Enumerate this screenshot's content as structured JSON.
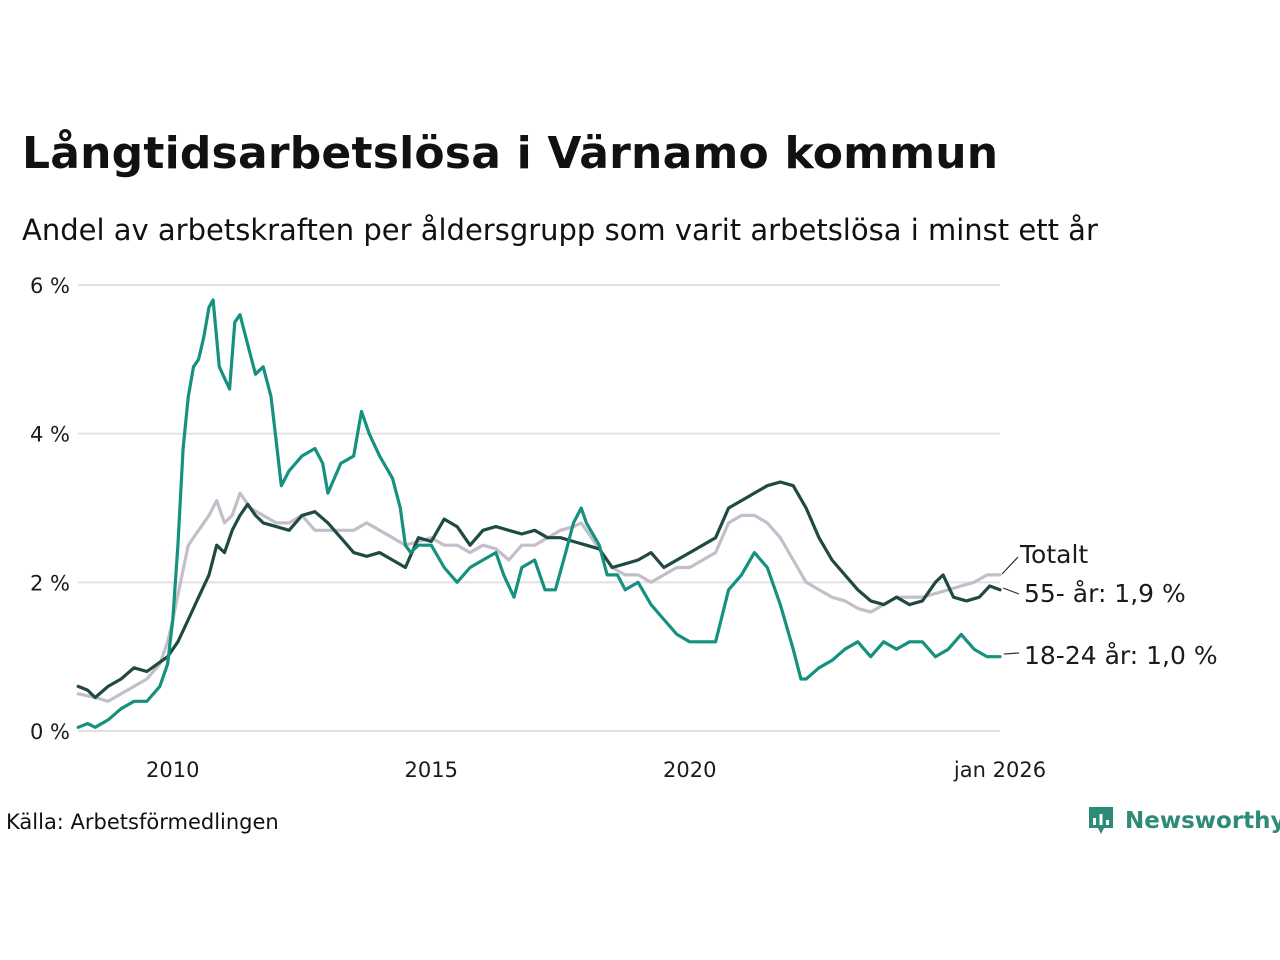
{
  "title": "Långtidsarbetslösa i Värnamo kommun",
  "subtitle": "Andel av arbetskraften per åldersgrupp som varit arbetslösa i minst ett år",
  "source": "Källa: Arbetsförmedlingen",
  "logo_text": "Newsworthy",
  "colors": {
    "total": "#c3bec9",
    "age55": "#1f4a40",
    "age1824": "#16917f",
    "grid": "#e2e0e4",
    "brand": "#2e8b78"
  },
  "chart_data": {
    "type": "line",
    "title": "Långtidsarbetslösa i Värnamo kommun",
    "subtitle": "Andel av arbetskraften per åldersgrupp som varit arbetslösa i minst ett år",
    "xlabel": "",
    "ylabel": "",
    "xlim": [
      2008.167,
      2026.0
    ],
    "ylim": [
      0,
      6
    ],
    "grid": true,
    "y_ticks": [
      {
        "value": 0,
        "label": "0 %"
      },
      {
        "value": 2,
        "label": "2 %"
      },
      {
        "value": 4,
        "label": "4 %"
      },
      {
        "value": 6,
        "label": "6 %"
      }
    ],
    "x_ticks": [
      {
        "value": 2010,
        "label": "2010"
      },
      {
        "value": 2015,
        "label": "2015"
      },
      {
        "value": 2020,
        "label": "2020"
      },
      {
        "value": 2026,
        "label": "jan 2026"
      }
    ],
    "series": [
      {
        "name": "Totalt",
        "label": "Totalt",
        "color_key": "total",
        "points": [
          [
            2008.17,
            0.5
          ],
          [
            2008.5,
            0.45
          ],
          [
            2008.75,
            0.4
          ],
          [
            2009.0,
            0.5
          ],
          [
            2009.25,
            0.6
          ],
          [
            2009.5,
            0.7
          ],
          [
            2009.75,
            0.9
          ],
          [
            2009.9,
            1.2
          ],
          [
            2010.0,
            1.5
          ],
          [
            2010.15,
            2.0
          ],
          [
            2010.3,
            2.5
          ],
          [
            2010.5,
            2.7
          ],
          [
            2010.7,
            2.9
          ],
          [
            2010.85,
            3.1
          ],
          [
            2011.0,
            2.8
          ],
          [
            2011.15,
            2.9
          ],
          [
            2011.3,
            3.2
          ],
          [
            2011.5,
            3.0
          ],
          [
            2011.75,
            2.9
          ],
          [
            2012.0,
            2.8
          ],
          [
            2012.25,
            2.8
          ],
          [
            2012.5,
            2.9
          ],
          [
            2012.75,
            2.7
          ],
          [
            2013.0,
            2.7
          ],
          [
            2013.25,
            2.7
          ],
          [
            2013.5,
            2.7
          ],
          [
            2013.75,
            2.8
          ],
          [
            2014.0,
            2.7
          ],
          [
            2014.25,
            2.6
          ],
          [
            2014.5,
            2.5
          ],
          [
            2014.75,
            2.55
          ],
          [
            2015.0,
            2.6
          ],
          [
            2015.25,
            2.5
          ],
          [
            2015.5,
            2.5
          ],
          [
            2015.75,
            2.4
          ],
          [
            2016.0,
            2.5
          ],
          [
            2016.25,
            2.45
          ],
          [
            2016.5,
            2.3
          ],
          [
            2016.75,
            2.5
          ],
          [
            2017.0,
            2.5
          ],
          [
            2017.25,
            2.6
          ],
          [
            2017.5,
            2.7
          ],
          [
            2017.75,
            2.75
          ],
          [
            2017.9,
            2.8
          ],
          [
            2018.0,
            2.7
          ],
          [
            2018.2,
            2.5
          ],
          [
            2018.5,
            2.2
          ],
          [
            2018.75,
            2.1
          ],
          [
            2019.0,
            2.1
          ],
          [
            2019.25,
            2.0
          ],
          [
            2019.5,
            2.1
          ],
          [
            2019.75,
            2.2
          ],
          [
            2020.0,
            2.2
          ],
          [
            2020.25,
            2.3
          ],
          [
            2020.5,
            2.4
          ],
          [
            2020.75,
            2.8
          ],
          [
            2021.0,
            2.9
          ],
          [
            2021.25,
            2.9
          ],
          [
            2021.5,
            2.8
          ],
          [
            2021.75,
            2.6
          ],
          [
            2022.0,
            2.3
          ],
          [
            2022.25,
            2.0
          ],
          [
            2022.5,
            1.9
          ],
          [
            2022.75,
            1.8
          ],
          [
            2023.0,
            1.75
          ],
          [
            2023.25,
            1.65
          ],
          [
            2023.5,
            1.6
          ],
          [
            2023.75,
            1.7
          ],
          [
            2024.0,
            1.8
          ],
          [
            2024.25,
            1.8
          ],
          [
            2024.5,
            1.8
          ],
          [
            2024.75,
            1.85
          ],
          [
            2025.0,
            1.9
          ],
          [
            2025.25,
            1.95
          ],
          [
            2025.5,
            2.0
          ],
          [
            2025.75,
            2.1
          ],
          [
            2026.0,
            2.1
          ]
        ]
      },
      {
        "name": "55- år",
        "label": "55- år: 1,9 %",
        "color_key": "age55",
        "points": [
          [
            2008.17,
            0.6
          ],
          [
            2008.35,
            0.55
          ],
          [
            2008.5,
            0.45
          ],
          [
            2008.75,
            0.6
          ],
          [
            2009.0,
            0.7
          ],
          [
            2009.25,
            0.85
          ],
          [
            2009.5,
            0.8
          ],
          [
            2009.7,
            0.9
          ],
          [
            2009.9,
            1.0
          ],
          [
            2010.1,
            1.2
          ],
          [
            2010.3,
            1.5
          ],
          [
            2010.5,
            1.8
          ],
          [
            2010.7,
            2.1
          ],
          [
            2010.85,
            2.5
          ],
          [
            2011.0,
            2.4
          ],
          [
            2011.15,
            2.7
          ],
          [
            2011.3,
            2.9
          ],
          [
            2011.45,
            3.05
          ],
          [
            2011.6,
            2.9
          ],
          [
            2011.75,
            2.8
          ],
          [
            2012.0,
            2.75
          ],
          [
            2012.25,
            2.7
          ],
          [
            2012.5,
            2.9
          ],
          [
            2012.75,
            2.95
          ],
          [
            2013.0,
            2.8
          ],
          [
            2013.25,
            2.6
          ],
          [
            2013.5,
            2.4
          ],
          [
            2013.75,
            2.35
          ],
          [
            2014.0,
            2.4
          ],
          [
            2014.25,
            2.3
          ],
          [
            2014.5,
            2.2
          ],
          [
            2014.75,
            2.6
          ],
          [
            2015.0,
            2.55
          ],
          [
            2015.25,
            2.85
          ],
          [
            2015.5,
            2.75
          ],
          [
            2015.75,
            2.5
          ],
          [
            2016.0,
            2.7
          ],
          [
            2016.25,
            2.75
          ],
          [
            2016.5,
            2.7
          ],
          [
            2016.75,
            2.65
          ],
          [
            2017.0,
            2.7
          ],
          [
            2017.25,
            2.6
          ],
          [
            2017.5,
            2.6
          ],
          [
            2017.75,
            2.55
          ],
          [
            2018.0,
            2.5
          ],
          [
            2018.25,
            2.45
          ],
          [
            2018.5,
            2.2
          ],
          [
            2018.75,
            2.25
          ],
          [
            2019.0,
            2.3
          ],
          [
            2019.25,
            2.4
          ],
          [
            2019.5,
            2.2
          ],
          [
            2019.75,
            2.3
          ],
          [
            2020.0,
            2.4
          ],
          [
            2020.25,
            2.5
          ],
          [
            2020.5,
            2.6
          ],
          [
            2020.75,
            3.0
          ],
          [
            2021.0,
            3.1
          ],
          [
            2021.25,
            3.2
          ],
          [
            2021.5,
            3.3
          ],
          [
            2021.75,
            3.35
          ],
          [
            2022.0,
            3.3
          ],
          [
            2022.25,
            3.0
          ],
          [
            2022.5,
            2.6
          ],
          [
            2022.75,
            2.3
          ],
          [
            2023.0,
            2.1
          ],
          [
            2023.25,
            1.9
          ],
          [
            2023.5,
            1.75
          ],
          [
            2023.75,
            1.7
          ],
          [
            2024.0,
            1.8
          ],
          [
            2024.25,
            1.7
          ],
          [
            2024.5,
            1.75
          ],
          [
            2024.75,
            2.0
          ],
          [
            2024.9,
            2.1
          ],
          [
            2025.1,
            1.8
          ],
          [
            2025.35,
            1.75
          ],
          [
            2025.6,
            1.8
          ],
          [
            2025.8,
            1.95
          ],
          [
            2026.0,
            1.9
          ]
        ]
      },
      {
        "name": "18-24 år",
        "label": "18-24 år: 1,0 %",
        "color_key": "age1824",
        "points": [
          [
            2008.17,
            0.05
          ],
          [
            2008.35,
            0.1
          ],
          [
            2008.5,
            0.05
          ],
          [
            2008.75,
            0.15
          ],
          [
            2009.0,
            0.3
          ],
          [
            2009.25,
            0.4
          ],
          [
            2009.5,
            0.4
          ],
          [
            2009.75,
            0.6
          ],
          [
            2009.9,
            0.9
          ],
          [
            2010.0,
            1.5
          ],
          [
            2010.1,
            2.5
          ],
          [
            2010.2,
            3.8
          ],
          [
            2010.3,
            4.5
          ],
          [
            2010.4,
            4.9
          ],
          [
            2010.5,
            5.0
          ],
          [
            2010.6,
            5.3
          ],
          [
            2010.7,
            5.7
          ],
          [
            2010.78,
            5.8
          ],
          [
            2010.9,
            4.9
          ],
          [
            2011.1,
            4.6
          ],
          [
            2011.2,
            5.5
          ],
          [
            2011.3,
            5.6
          ],
          [
            2011.45,
            5.2
          ],
          [
            2011.6,
            4.8
          ],
          [
            2011.75,
            4.9
          ],
          [
            2011.9,
            4.5
          ],
          [
            2012.0,
            3.9
          ],
          [
            2012.1,
            3.3
          ],
          [
            2012.25,
            3.5
          ],
          [
            2012.5,
            3.7
          ],
          [
            2012.75,
            3.8
          ],
          [
            2012.9,
            3.6
          ],
          [
            2013.0,
            3.2
          ],
          [
            2013.25,
            3.6
          ],
          [
            2013.5,
            3.7
          ],
          [
            2013.65,
            4.3
          ],
          [
            2013.8,
            4.0
          ],
          [
            2014.0,
            3.7
          ],
          [
            2014.25,
            3.4
          ],
          [
            2014.4,
            3.0
          ],
          [
            2014.5,
            2.5
          ],
          [
            2014.6,
            2.4
          ],
          [
            2014.75,
            2.5
          ],
          [
            2015.0,
            2.5
          ],
          [
            2015.25,
            2.2
          ],
          [
            2015.5,
            2.0
          ],
          [
            2015.75,
            2.2
          ],
          [
            2016.0,
            2.3
          ],
          [
            2016.25,
            2.4
          ],
          [
            2016.4,
            2.1
          ],
          [
            2016.6,
            1.8
          ],
          [
            2016.75,
            2.2
          ],
          [
            2017.0,
            2.3
          ],
          [
            2017.2,
            1.9
          ],
          [
            2017.4,
            1.9
          ],
          [
            2017.6,
            2.4
          ],
          [
            2017.75,
            2.8
          ],
          [
            2017.9,
            3.0
          ],
          [
            2018.0,
            2.8
          ],
          [
            2018.25,
            2.5
          ],
          [
            2018.4,
            2.1
          ],
          [
            2018.6,
            2.1
          ],
          [
            2018.75,
            1.9
          ],
          [
            2019.0,
            2.0
          ],
          [
            2019.25,
            1.7
          ],
          [
            2019.5,
            1.5
          ],
          [
            2019.75,
            1.3
          ],
          [
            2020.0,
            1.2
          ],
          [
            2020.25,
            1.2
          ],
          [
            2020.5,
            1.2
          ],
          [
            2020.75,
            1.9
          ],
          [
            2021.0,
            2.1
          ],
          [
            2021.25,
            2.4
          ],
          [
            2021.5,
            2.2
          ],
          [
            2021.75,
            1.7
          ],
          [
            2022.0,
            1.1
          ],
          [
            2022.15,
            0.7
          ],
          [
            2022.25,
            0.7
          ],
          [
            2022.5,
            0.85
          ],
          [
            2022.75,
            0.95
          ],
          [
            2023.0,
            1.1
          ],
          [
            2023.25,
            1.2
          ],
          [
            2023.5,
            1.0
          ],
          [
            2023.75,
            1.2
          ],
          [
            2024.0,
            1.1
          ],
          [
            2024.25,
            1.2
          ],
          [
            2024.5,
            1.2
          ],
          [
            2024.75,
            1.0
          ],
          [
            2025.0,
            1.1
          ],
          [
            2025.25,
            1.3
          ],
          [
            2025.5,
            1.1
          ],
          [
            2025.75,
            1.0
          ],
          [
            2026.0,
            1.0
          ]
        ]
      }
    ]
  }
}
